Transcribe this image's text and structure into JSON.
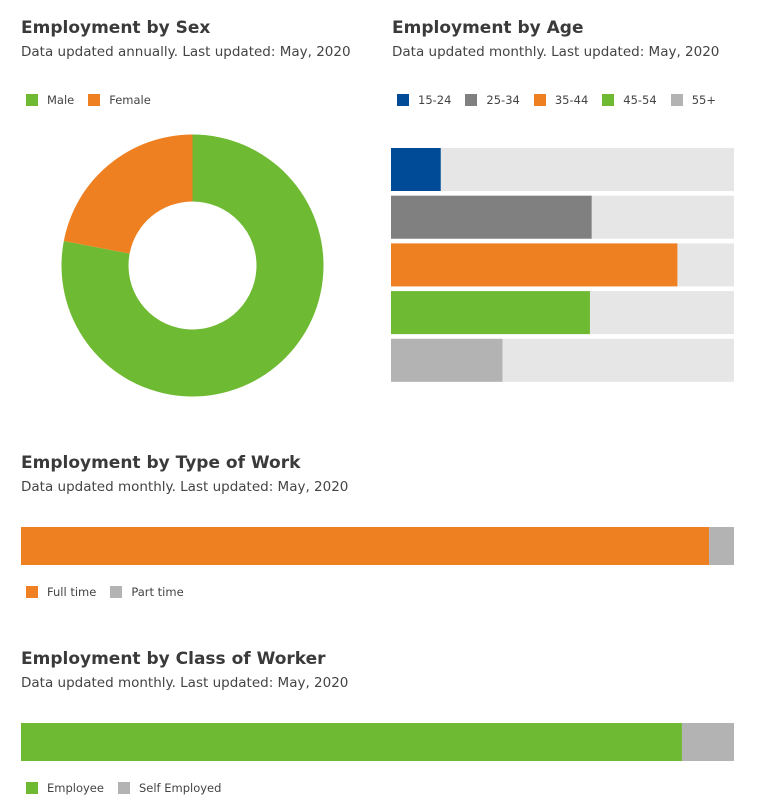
{
  "colors": {
    "male": "#6fba33",
    "female": "#ee8021",
    "age_15_24": "#004b97",
    "age_25_34": "#808080",
    "age_35_44": "#ee8021",
    "age_45_54": "#6fba33",
    "age_55_plus": "#b3b3b3",
    "track": "#e6e6e6",
    "full_time": "#ee8021",
    "part_time": "#b3b3b3",
    "employee": "#6fba33",
    "self_employed": "#b3b3b3"
  },
  "sex": {
    "title": "Employment by Sex",
    "subtitle": "Data updated annually. Last updated: May, 2020",
    "legend": [
      "Male",
      "Female"
    ]
  },
  "age": {
    "title": "Employment by Age",
    "subtitle": "Data updated monthly. Last updated: May, 2020",
    "legend": [
      "15-24",
      "25-34",
      "35-44",
      "45-54",
      "55+"
    ]
  },
  "work": {
    "title": "Employment by Type of Work",
    "subtitle": "Data updated monthly. Last updated: May, 2020",
    "legend": [
      "Full time",
      "Part time"
    ]
  },
  "worker": {
    "title": "Employment by Class of Worker",
    "subtitle": "Data updated monthly. Last updated: May, 2020",
    "legend": [
      "Employee",
      "Self Employed"
    ]
  },
  "chart_data": [
    {
      "type": "pie",
      "title": "Employment by Sex",
      "subtitle": "Data updated annually. Last updated: May, 2020",
      "categories": [
        "Male",
        "Female"
      ],
      "values": [
        78,
        22
      ],
      "donut": true,
      "legend_position": "top-left"
    },
    {
      "type": "bar",
      "orientation": "horizontal",
      "title": "Employment by Age",
      "subtitle": "Data updated monthly. Last updated: May, 2020",
      "categories": [
        "15-24",
        "25-34",
        "35-44",
        "45-54",
        "55+"
      ],
      "values": [
        14.5,
        58.5,
        83.5,
        58,
        32.5
      ],
      "xlim": [
        0,
        100
      ],
      "legend_position": "top-left"
    },
    {
      "type": "bar",
      "orientation": "horizontal",
      "stacked": true,
      "title": "Employment by Type of Work",
      "subtitle": "Data updated monthly. Last updated: May, 2020",
      "series": [
        {
          "name": "Full time",
          "values": [
            96.5
          ]
        },
        {
          "name": "Part time",
          "values": [
            3.5
          ]
        }
      ],
      "legend_position": "bottom-left"
    },
    {
      "type": "bar",
      "orientation": "horizontal",
      "stacked": true,
      "title": "Employment by Class of Worker",
      "subtitle": "Data updated monthly. Last updated: May, 2020",
      "series": [
        {
          "name": "Employee",
          "values": [
            92.7
          ]
        },
        {
          "name": "Self Employed",
          "values": [
            7.3
          ]
        }
      ],
      "legend_position": "bottom-left"
    }
  ]
}
